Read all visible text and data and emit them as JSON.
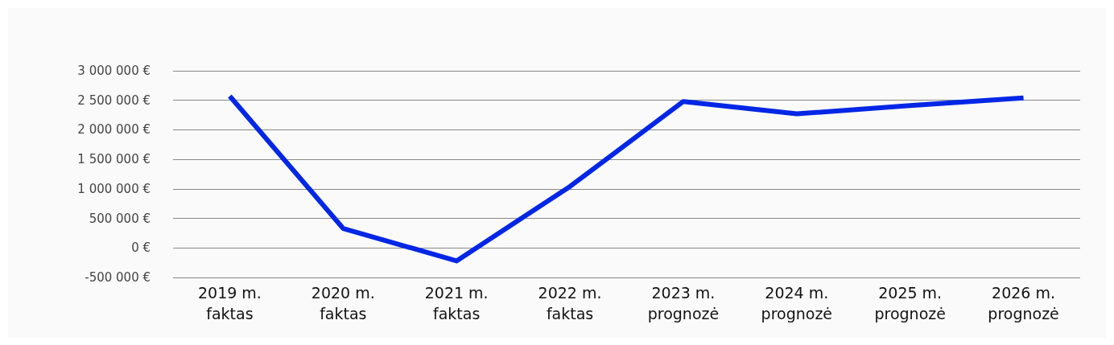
{
  "chart_data": {
    "type": "line",
    "categories": [
      "2019 m.\nfaktas",
      "2020 m.\nfaktas",
      "2021 m.\nfaktas",
      "2022 m.\nfaktas",
      "2023 m.\nprognozė",
      "2024 m.\nprognozė",
      "2025 m.\nprognozė",
      "2026 m.\nprognozė"
    ],
    "series": [
      {
        "color": "#0026e6",
        "values": [
          2570000,
          330000,
          -220000,
          1040000,
          2480000,
          2270000,
          2410000,
          2540000
        ]
      }
    ],
    "ylim": [
      -500000,
      3000000
    ],
    "yticks": [
      {
        "value": -500000,
        "label": "-500 000 €"
      },
      {
        "value": 0,
        "label": "0 €"
      },
      {
        "value": 500000,
        "label": "500 000 €"
      },
      {
        "value": 1000000,
        "label": "1 000 000 €"
      },
      {
        "value": 1500000,
        "label": "1 500 000 €"
      },
      {
        "value": 2000000,
        "label": "2 000 000 €"
      },
      {
        "value": 2500000,
        "label": "2 500 000 €"
      },
      {
        "value": 3000000,
        "label": "3 000 000 €"
      }
    ],
    "grid": "y",
    "marker": "none",
    "line_style": "solid"
  }
}
